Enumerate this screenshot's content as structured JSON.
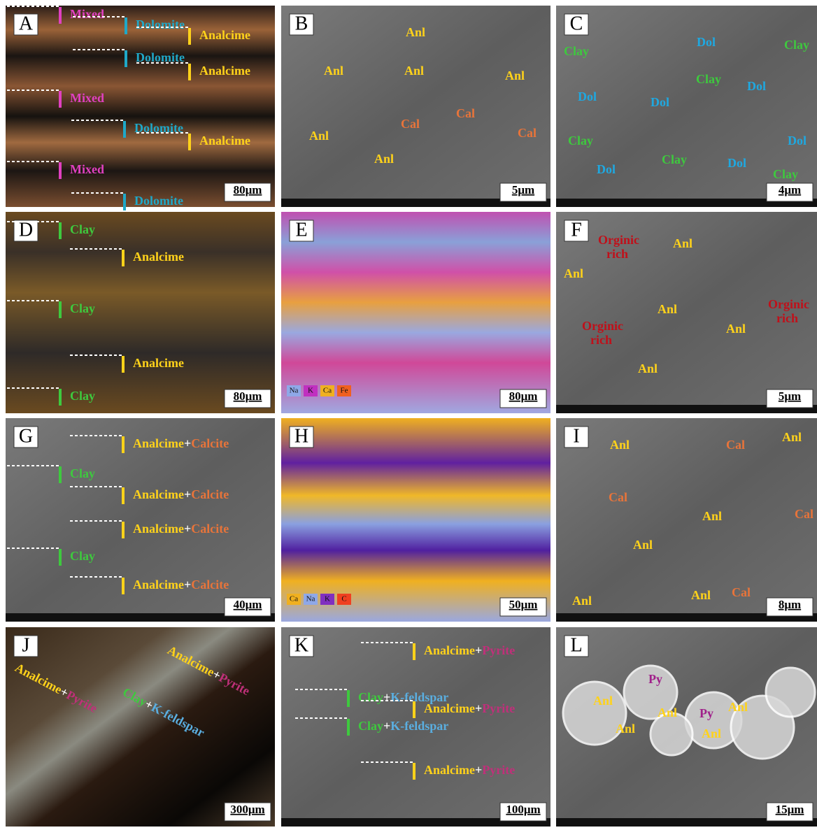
{
  "panels": [
    {
      "letter": "A",
      "scale": "80μm",
      "labels": [
        {
          "parts": [
            {
              "text": "Mixed",
              "color": "#e040c0"
            }
          ]
        },
        {
          "parts": [
            {
              "text": "Dolomite",
              "color": "#1fa8c8"
            }
          ]
        },
        {
          "parts": [
            {
              "text": "Analcime",
              "color": "#ffd21a"
            }
          ]
        },
        {
          "parts": [
            {
              "text": "Dolomite",
              "color": "#1fa8c8"
            }
          ]
        },
        {
          "parts": [
            {
              "text": "Analcime",
              "color": "#ffd21a"
            }
          ]
        },
        {
          "parts": [
            {
              "text": "Mixed",
              "color": "#e040c0"
            }
          ]
        },
        {
          "parts": [
            {
              "text": "Dolomite",
              "color": "#1fa8c8"
            }
          ]
        },
        {
          "parts": [
            {
              "text": "Analcime",
              "color": "#ffd21a"
            }
          ]
        },
        {
          "parts": [
            {
              "text": "Mixed",
              "color": "#e040c0"
            }
          ]
        },
        {
          "parts": [
            {
              "text": "Dolomite",
              "color": "#1fa8c8"
            }
          ]
        }
      ]
    },
    {
      "letter": "B",
      "scale": "5μm",
      "labels": [
        {
          "parts": [
            {
              "text": "Anl",
              "color": "#ffd21a"
            }
          ]
        },
        {
          "parts": [
            {
              "text": "Anl",
              "color": "#ffd21a"
            }
          ]
        },
        {
          "parts": [
            {
              "text": "Anl",
              "color": "#ffd21a"
            }
          ]
        },
        {
          "parts": [
            {
              "text": "Anl",
              "color": "#ffd21a"
            }
          ]
        },
        {
          "parts": [
            {
              "text": "Cal",
              "color": "#e8743a"
            }
          ]
        },
        {
          "parts": [
            {
              "text": "Cal",
              "color": "#e8743a"
            }
          ]
        },
        {
          "parts": [
            {
              "text": "Cal",
              "color": "#e8743a"
            }
          ]
        },
        {
          "parts": [
            {
              "text": "Anl",
              "color": "#ffd21a"
            }
          ]
        },
        {
          "parts": [
            {
              "text": "Anl",
              "color": "#ffd21a"
            }
          ]
        }
      ]
    },
    {
      "letter": "C",
      "scale": "4μm",
      "labels": [
        {
          "parts": [
            {
              "text": "Clay",
              "color": "#3ec93e"
            }
          ]
        },
        {
          "parts": [
            {
              "text": "Dol",
              "color": "#1fa8e0"
            }
          ]
        },
        {
          "parts": [
            {
              "text": "Clay",
              "color": "#3ec93e"
            }
          ]
        },
        {
          "parts": [
            {
              "text": "Clay",
              "color": "#3ec93e"
            }
          ]
        },
        {
          "parts": [
            {
              "text": "Dol",
              "color": "#1fa8e0"
            }
          ]
        },
        {
          "parts": [
            {
              "text": "Dol",
              "color": "#1fa8e0"
            }
          ]
        },
        {
          "parts": [
            {
              "text": "Dol",
              "color": "#1fa8e0"
            }
          ]
        },
        {
          "parts": [
            {
              "text": "Clay",
              "color": "#3ec93e"
            }
          ]
        },
        {
          "parts": [
            {
              "text": "Clay",
              "color": "#3ec93e"
            }
          ]
        },
        {
          "parts": [
            {
              "text": "Dol",
              "color": "#1fa8e0"
            }
          ]
        },
        {
          "parts": [
            {
              "text": "Dol",
              "color": "#1fa8e0"
            }
          ]
        },
        {
          "parts": [
            {
              "text": "Dol",
              "color": "#1fa8e0"
            }
          ]
        },
        {
          "parts": [
            {
              "text": "Clay",
              "color": "#3ec93e"
            }
          ]
        }
      ]
    },
    {
      "letter": "D",
      "scale": "80μm",
      "labels": [
        {
          "parts": [
            {
              "text": "Clay",
              "color": "#3ec93e"
            }
          ]
        },
        {
          "parts": [
            {
              "text": "Analcime",
              "color": "#ffd21a"
            }
          ]
        },
        {
          "parts": [
            {
              "text": "Clay",
              "color": "#3ec93e"
            }
          ]
        },
        {
          "parts": [
            {
              "text": "Analcime",
              "color": "#ffd21a"
            }
          ]
        },
        {
          "parts": [
            {
              "text": "Clay",
              "color": "#3ec93e"
            }
          ]
        }
      ]
    },
    {
      "letter": "E",
      "scale": "80μm",
      "labels": [],
      "legend": [
        {
          "text": "Na",
          "color": "#8fa8e8"
        },
        {
          "text": "K",
          "color": "#c030c0"
        },
        {
          "text": "Ca",
          "color": "#f0b020"
        },
        {
          "text": "Fe",
          "color": "#f06020"
        }
      ]
    },
    {
      "letter": "F",
      "scale": "5μm",
      "labels": [
        {
          "stacked": true,
          "parts": [
            {
              "text": "Orginic",
              "color": "#c0101a"
            },
            {
              "text": "rich",
              "color": "#c0101a"
            }
          ]
        },
        {
          "parts": [
            {
              "text": "Anl",
              "color": "#ffd21a"
            }
          ]
        },
        {
          "parts": [
            {
              "text": "Anl",
              "color": "#ffd21a"
            }
          ]
        },
        {
          "stacked": true,
          "parts": [
            {
              "text": "Orginic",
              "color": "#c0101a"
            },
            {
              "text": "rich",
              "color": "#c0101a"
            }
          ]
        },
        {
          "parts": [
            {
              "text": "Anl",
              "color": "#ffd21a"
            }
          ]
        },
        {
          "stacked": true,
          "parts": [
            {
              "text": "Orginic",
              "color": "#c0101a"
            },
            {
              "text": "rich",
              "color": "#c0101a"
            }
          ]
        },
        {
          "parts": [
            {
              "text": "Anl",
              "color": "#ffd21a"
            }
          ]
        },
        {
          "parts": [
            {
              "text": "Anl",
              "color": "#ffd21a"
            }
          ]
        }
      ]
    },
    {
      "letter": "G",
      "scale": "40μm",
      "labels": [
        {
          "parts": [
            {
              "text": "Analcime",
              "color": "#ffd21a"
            },
            {
              "text": "+",
              "color": "#ffffff"
            },
            {
              "text": "Calcite",
              "color": "#e8743a"
            }
          ]
        },
        {
          "parts": [
            {
              "text": "Clay",
              "color": "#3ec93e"
            }
          ]
        },
        {
          "parts": [
            {
              "text": "Analcime",
              "color": "#ffd21a"
            },
            {
              "text": "+",
              "color": "#ffffff"
            },
            {
              "text": "Calcite",
              "color": "#e8743a"
            }
          ]
        },
        {
          "parts": [
            {
              "text": "Analcime",
              "color": "#ffd21a"
            },
            {
              "text": "+",
              "color": "#ffffff"
            },
            {
              "text": "Calcite",
              "color": "#e8743a"
            }
          ]
        },
        {
          "parts": [
            {
              "text": "Clay",
              "color": "#3ec93e"
            }
          ]
        },
        {
          "parts": [
            {
              "text": "Analcime",
              "color": "#ffd21a"
            },
            {
              "text": "+",
              "color": "#ffffff"
            },
            {
              "text": "Calcite",
              "color": "#e8743a"
            }
          ]
        }
      ]
    },
    {
      "letter": "H",
      "scale": "50μm",
      "labels": [],
      "legend": [
        {
          "text": "Ca",
          "color": "#f0b020"
        },
        {
          "text": "Na",
          "color": "#8fa8e8"
        },
        {
          "text": "K",
          "color": "#8030c0"
        },
        {
          "text": "C",
          "color": "#f04020"
        }
      ]
    },
    {
      "letter": "I",
      "scale": "8μm",
      "labels": [
        {
          "parts": [
            {
              "text": "Anl",
              "color": "#ffd21a"
            }
          ]
        },
        {
          "parts": [
            {
              "text": "Cal",
              "color": "#e8743a"
            }
          ]
        },
        {
          "parts": [
            {
              "text": "Anl",
              "color": "#ffd21a"
            }
          ]
        },
        {
          "parts": [
            {
              "text": "Cal",
              "color": "#e8743a"
            }
          ]
        },
        {
          "parts": [
            {
              "text": "Anl",
              "color": "#ffd21a"
            }
          ]
        },
        {
          "parts": [
            {
              "text": "Cal",
              "color": "#e8743a"
            }
          ]
        },
        {
          "parts": [
            {
              "text": "Anl",
              "color": "#ffd21a"
            }
          ]
        },
        {
          "parts": [
            {
              "text": "Anl",
              "color": "#ffd21a"
            }
          ]
        },
        {
          "parts": [
            {
              "text": "Anl",
              "color": "#ffd21a"
            }
          ]
        },
        {
          "parts": [
            {
              "text": "Cal",
              "color": "#e8743a"
            }
          ]
        }
      ]
    },
    {
      "letter": "J",
      "scale": "300μm",
      "labels": [
        {
          "parts": [
            {
              "text": "Analcime",
              "color": "#ffd21a"
            },
            {
              "text": "+",
              "color": "#ffffff"
            },
            {
              "text": "Pyrite",
              "color": "#c0307a"
            }
          ]
        },
        {
          "parts": [
            {
              "text": "Clay",
              "color": "#3ec93e"
            },
            {
              "text": "+",
              "color": "#ffffff"
            },
            {
              "text": "K-feldspar",
              "color": "#5aaee0"
            }
          ]
        },
        {
          "parts": [
            {
              "text": "Analcime",
              "color": "#ffd21a"
            },
            {
              "text": "+",
              "color": "#ffffff"
            },
            {
              "text": "Pyrite",
              "color": "#c0307a"
            }
          ]
        }
      ]
    },
    {
      "letter": "K",
      "scale": "100μm",
      "labels": [
        {
          "parts": [
            {
              "text": "Analcime",
              "color": "#ffd21a"
            },
            {
              "text": "+",
              "color": "#ffffff"
            },
            {
              "text": "Pyrite",
              "color": "#c0307a"
            }
          ]
        },
        {
          "parts": [
            {
              "text": "Clay",
              "color": "#3ec93e"
            },
            {
              "text": "+",
              "color": "#ffffff"
            },
            {
              "text": "K-feldspar",
              "color": "#5aaee0"
            }
          ]
        },
        {
          "parts": [
            {
              "text": "Analcime",
              "color": "#ffd21a"
            },
            {
              "text": "+",
              "color": "#ffffff"
            },
            {
              "text": "Pyrite",
              "color": "#c0307a"
            }
          ]
        },
        {
          "parts": [
            {
              "text": "Clay",
              "color": "#3ec93e"
            },
            {
              "text": "+",
              "color": "#ffffff"
            },
            {
              "text": "K-feldspar",
              "color": "#5aaee0"
            }
          ]
        },
        {
          "parts": [
            {
              "text": "Analcime",
              "color": "#ffd21a"
            },
            {
              "text": "+",
              "color": "#ffffff"
            },
            {
              "text": "Pyrite",
              "color": "#c0307a"
            }
          ]
        }
      ]
    },
    {
      "letter": "L",
      "scale": "15μm",
      "labels": [
        {
          "parts": [
            {
              "text": "Py",
              "color": "#a0208a"
            }
          ]
        },
        {
          "parts": [
            {
              "text": "Anl",
              "color": "#ffd21a"
            }
          ]
        },
        {
          "parts": [
            {
              "text": "Anl",
              "color": "#ffd21a"
            }
          ]
        },
        {
          "parts": [
            {
              "text": "Py",
              "color": "#a0208a"
            }
          ]
        },
        {
          "parts": [
            {
              "text": "Anl",
              "color": "#ffd21a"
            }
          ]
        },
        {
          "parts": [
            {
              "text": "Anl",
              "color": "#ffd21a"
            }
          ]
        },
        {
          "parts": [
            {
              "text": "Anl",
              "color": "#ffd21a"
            }
          ]
        }
      ]
    }
  ]
}
